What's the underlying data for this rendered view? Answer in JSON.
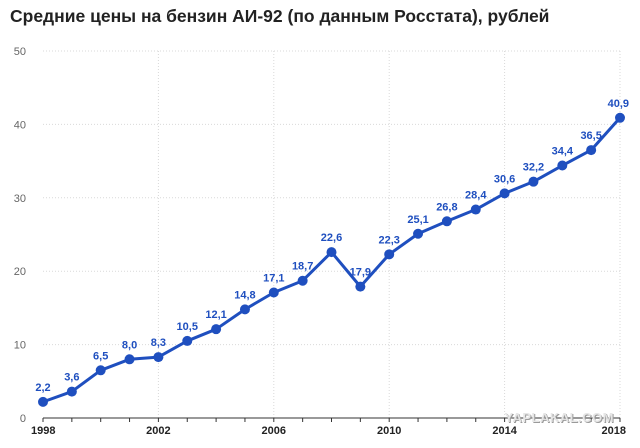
{
  "chart_data": {
    "type": "line",
    "title": "Средние цены на бензин АИ-92 (по данным Росстата), рублей",
    "x": [
      1998,
      1999,
      2000,
      2001,
      2002,
      2003,
      2004,
      2005,
      2006,
      2007,
      2008,
      2009,
      2010,
      2011,
      2012,
      2013,
      2014,
      2015,
      2016,
      2017,
      2018
    ],
    "series": [
      {
        "values": [
          2.2,
          3.6,
          6.5,
          8.0,
          8.3,
          10.5,
          12.1,
          14.8,
          17.1,
          18.7,
          22.6,
          17.9,
          22.3,
          25.1,
          26.8,
          28.4,
          30.6,
          32.2,
          34.4,
          36.5,
          40.9
        ],
        "labels": [
          "2,2",
          "3,6",
          "6,5",
          "8,0",
          "8,3",
          "10,5",
          "12,1",
          "14,8",
          "17,1",
          "18,7",
          "22,6",
          "17,9",
          "22,3",
          "25,1",
          "26,8",
          "28,4",
          "30,6",
          "32,2",
          "34,4",
          "36,5",
          "40,9"
        ]
      }
    ],
    "x_ticks": [
      1998,
      2002,
      2006,
      2010,
      2014,
      2018
    ],
    "x_tick_labels": [
      "1998",
      "2002",
      "2006",
      "2010",
      "2014",
      "2018"
    ],
    "y_ticks": [
      0,
      10,
      20,
      30,
      40,
      50
    ],
    "y_tick_labels": [
      "0",
      "10",
      "20",
      "30",
      "40",
      "50"
    ],
    "ylim": [
      0,
      50
    ],
    "xlim": [
      1998,
      2018
    ],
    "grid": true,
    "xlabel": "",
    "ylabel": "",
    "line_color": "#1f4fbf",
    "label_color": "#1f4fbf"
  },
  "watermark": "YAPLAKAL.COM"
}
